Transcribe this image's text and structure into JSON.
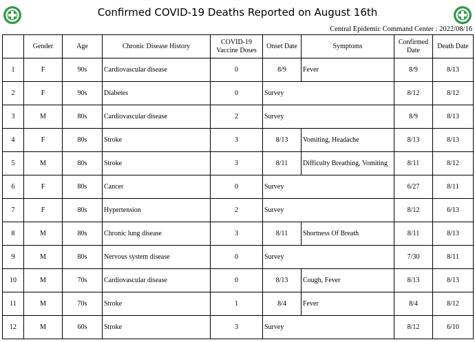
{
  "header": {
    "title": "Confirmed COVID-19 Deaths Reported on August 16th",
    "source": "Central Epidemic Command Center : 2022/08/16"
  },
  "table": {
    "columns": [
      "Gender",
      "Age",
      "Chronic Disease History",
      "COVID-19 Vaccine Doses",
      "Onset Date",
      "Symptoms",
      "Confirmed Date",
      "Death Date"
    ],
    "rows": [
      {
        "no": 1,
        "gender": "F",
        "age": "90s",
        "history": "Cardiovascular disease",
        "doses": 0,
        "onset": "8/9",
        "symptoms": "Fever",
        "confirmed": "8/9",
        "death": "8/13"
      },
      {
        "no": 2,
        "gender": "F",
        "age": "90s",
        "history": "Diabetes",
        "doses": 0,
        "onset": "Survey",
        "confirmed": "8/12",
        "death": "8/12"
      },
      {
        "no": 3,
        "gender": "M",
        "age": "80s",
        "history": "Cardiovascular disease",
        "doses": 2,
        "onset": "Survey",
        "confirmed": "8/9",
        "death": "8/13"
      },
      {
        "no": 4,
        "gender": "F",
        "age": "80s",
        "history": "Stroke",
        "doses": 3,
        "onset": "8/13",
        "symptoms": "Vomiting, Headache",
        "confirmed": "8/13",
        "death": "8/13"
      },
      {
        "no": 5,
        "gender": "M",
        "age": "80s",
        "history": "Stroke",
        "doses": 3,
        "onset": "8/11",
        "symptoms": "Difficulty Breathing, Vomiting",
        "confirmed": "8/11",
        "death": "8/12"
      },
      {
        "no": 6,
        "gender": "F",
        "age": "80s",
        "history": "Cancer",
        "doses": 0,
        "onset": "Survey",
        "confirmed": "6/27",
        "death": "8/11"
      },
      {
        "no": 7,
        "gender": "F",
        "age": "80s",
        "history": "Hypertension",
        "doses": 2,
        "onset": "Survey",
        "confirmed": "8/12",
        "death": "6/13"
      },
      {
        "no": 8,
        "gender": "M",
        "age": "80s",
        "history": "Chronic lung disease",
        "doses": 3,
        "onset": "8/11",
        "symptoms": "Shortness Of Breath",
        "confirmed": "8/11",
        "death": "8/13"
      },
      {
        "no": 9,
        "gender": "M",
        "age": "80s",
        "history": "Nervous system disease",
        "doses": 0,
        "onset": "Survey",
        "confirmed": "7/30",
        "death": "8/11"
      },
      {
        "no": 10,
        "gender": "M",
        "age": "70s",
        "history": "Cardiovascular disease",
        "doses": 0,
        "onset": "8/13",
        "symptoms": "Cough, Fever",
        "confirmed": "8/13",
        "death": "8/13"
      },
      {
        "no": 11,
        "gender": "M",
        "age": "70s",
        "history": "Stroke",
        "doses": 1,
        "onset": "8/4",
        "symptoms": "Fever",
        "confirmed": "8/4",
        "death": "8/12"
      },
      {
        "no": 12,
        "gender": "M",
        "age": "60s",
        "history": "Stroke",
        "doses": 3,
        "onset": "Survey",
        "confirmed": "8/12",
        "death": "6/10"
      }
    ]
  }
}
